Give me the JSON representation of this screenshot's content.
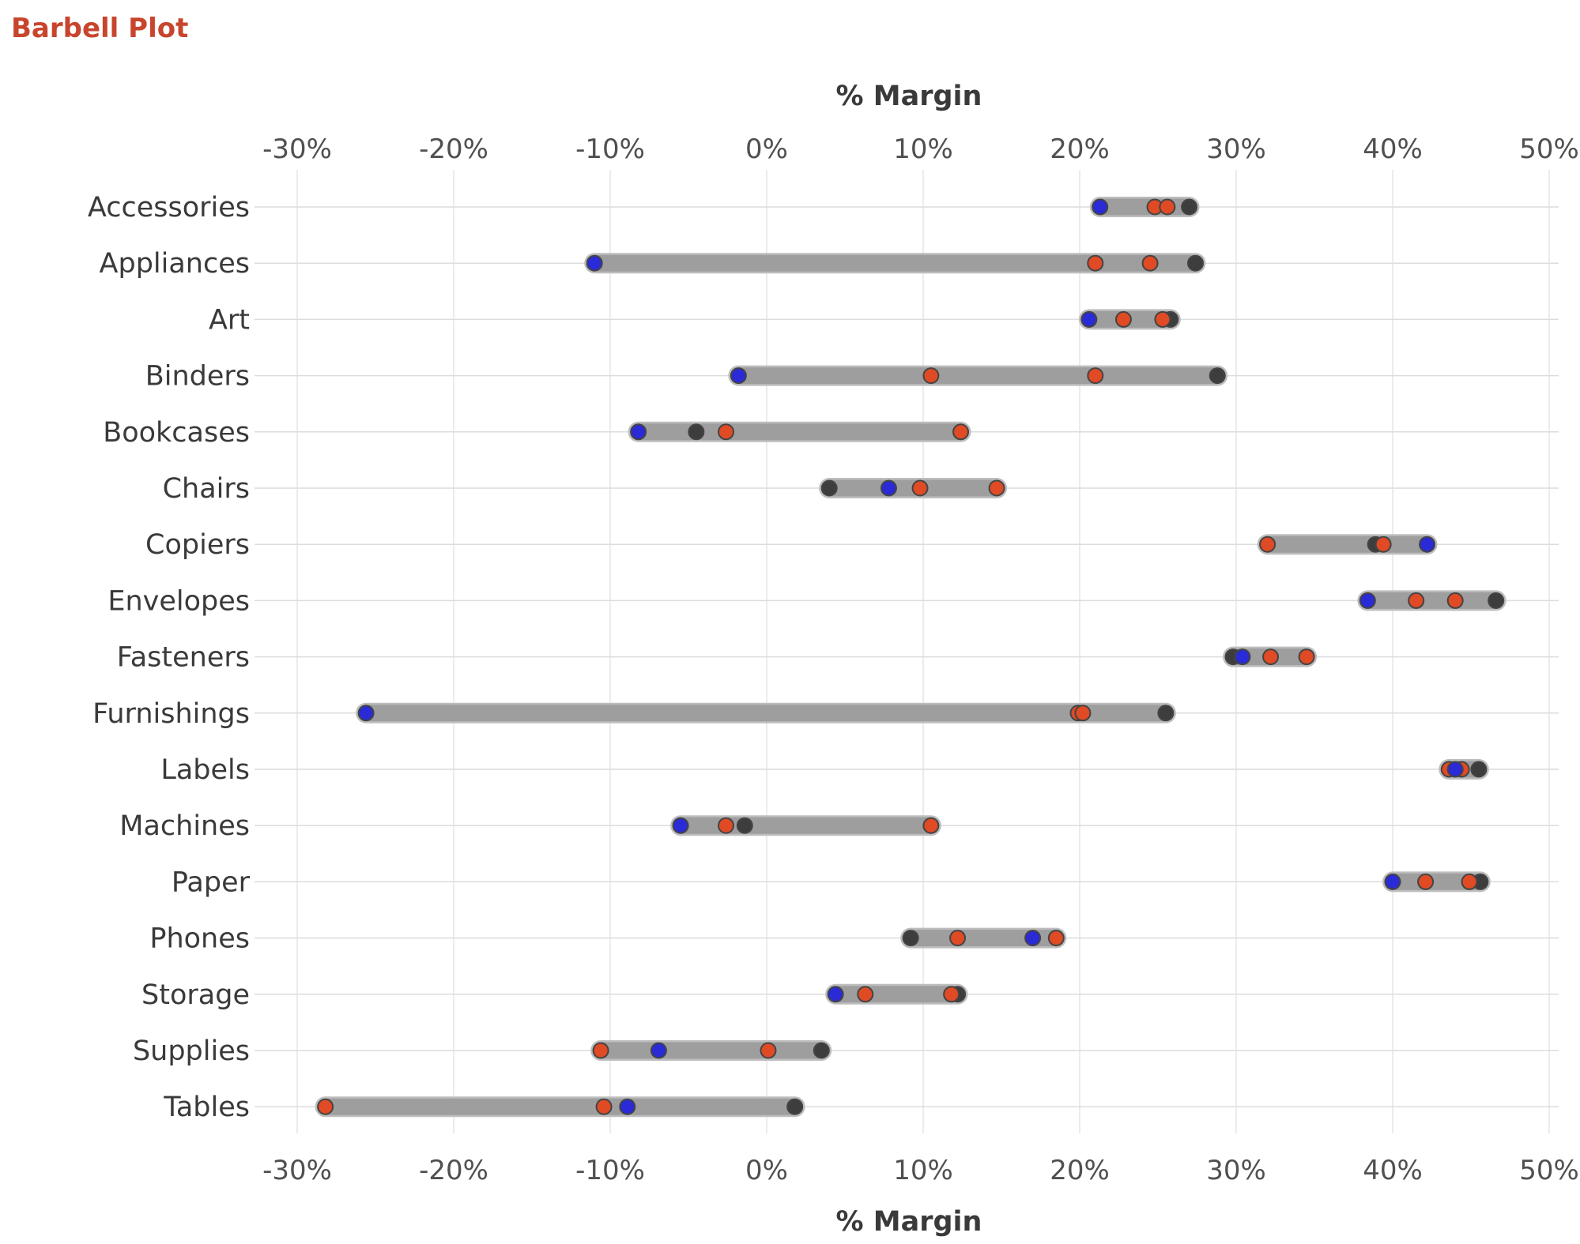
{
  "title": "Barbell Plot",
  "chart_data": {
    "type": "scatter",
    "title": "Barbell Plot",
    "xlabel": "% Margin",
    "ylabel": "",
    "xlim": [
      -30,
      50
    ],
    "x_ticks": [
      "-30%",
      "-20%",
      "-10%",
      "0%",
      "10%",
      "20%",
      "30%",
      "40%",
      "50%"
    ],
    "grid": true,
    "legend": "none",
    "colors": {
      "bar": "#9e9e9e",
      "bar_outline": "#bdbdbd",
      "blue": "#2a2ad6",
      "red": "#e04a24",
      "dark": "#3d3d3d",
      "marker_outline": "#444444"
    },
    "categories": [
      "Accessories",
      "Appliances",
      "Art",
      "Binders",
      "Bookcases",
      "Chairs",
      "Copiers",
      "Envelopes",
      "Fasteners",
      "Furnishings",
      "Labels",
      "Machines",
      "Paper",
      "Phones",
      "Storage",
      "Supplies",
      "Tables"
    ],
    "rows": [
      {
        "category": "Accessories",
        "blue": 21.3,
        "red": [
          24.8,
          25.6
        ],
        "dark": 27.0
      },
      {
        "category": "Appliances",
        "blue": -11.0,
        "red": [
          21.0,
          24.5
        ],
        "dark": 27.4
      },
      {
        "category": "Art",
        "blue": 20.6,
        "red": [
          22.8,
          25.3
        ],
        "dark": 25.8
      },
      {
        "category": "Binders",
        "blue": -1.8,
        "red": [
          10.5,
          21.0
        ],
        "dark": 28.8
      },
      {
        "category": "Bookcases",
        "blue": -8.2,
        "red": [
          -2.6,
          12.4
        ],
        "dark": -4.5
      },
      {
        "category": "Chairs",
        "blue": 7.8,
        "red": [
          9.8,
          14.7
        ],
        "dark": 4.0
      },
      {
        "category": "Copiers",
        "blue": 42.2,
        "red": [
          32.0,
          39.4
        ],
        "dark": 38.9
      },
      {
        "category": "Envelopes",
        "blue": 38.4,
        "red": [
          41.5,
          44.0
        ],
        "dark": 46.6
      },
      {
        "category": "Fasteners",
        "blue": 30.4,
        "red": [
          32.2,
          34.5
        ],
        "dark": 29.8
      },
      {
        "category": "Furnishings",
        "blue": -25.6,
        "red": [
          19.9,
          20.2
        ],
        "dark": 25.5
      },
      {
        "category": "Labels",
        "blue": 44.0,
        "red": [
          43.6,
          44.4
        ],
        "dark": 45.5
      },
      {
        "category": "Machines",
        "blue": -5.5,
        "red": [
          -2.6,
          10.5
        ],
        "dark": -1.4
      },
      {
        "category": "Paper",
        "blue": 40.0,
        "red": [
          42.1,
          44.9
        ],
        "dark": 45.6
      },
      {
        "category": "Phones",
        "blue": 17.0,
        "red": [
          12.2,
          18.5
        ],
        "dark": 9.2
      },
      {
        "category": "Storage",
        "blue": 4.4,
        "red": [
          6.3,
          11.8
        ],
        "dark": 12.2
      },
      {
        "category": "Supplies",
        "blue": -6.9,
        "red": [
          -10.6,
          0.1
        ],
        "dark": 3.5
      },
      {
        "category": "Tables",
        "blue": -8.9,
        "red": [
          -28.2,
          -10.4
        ],
        "dark": 1.8
      }
    ]
  }
}
